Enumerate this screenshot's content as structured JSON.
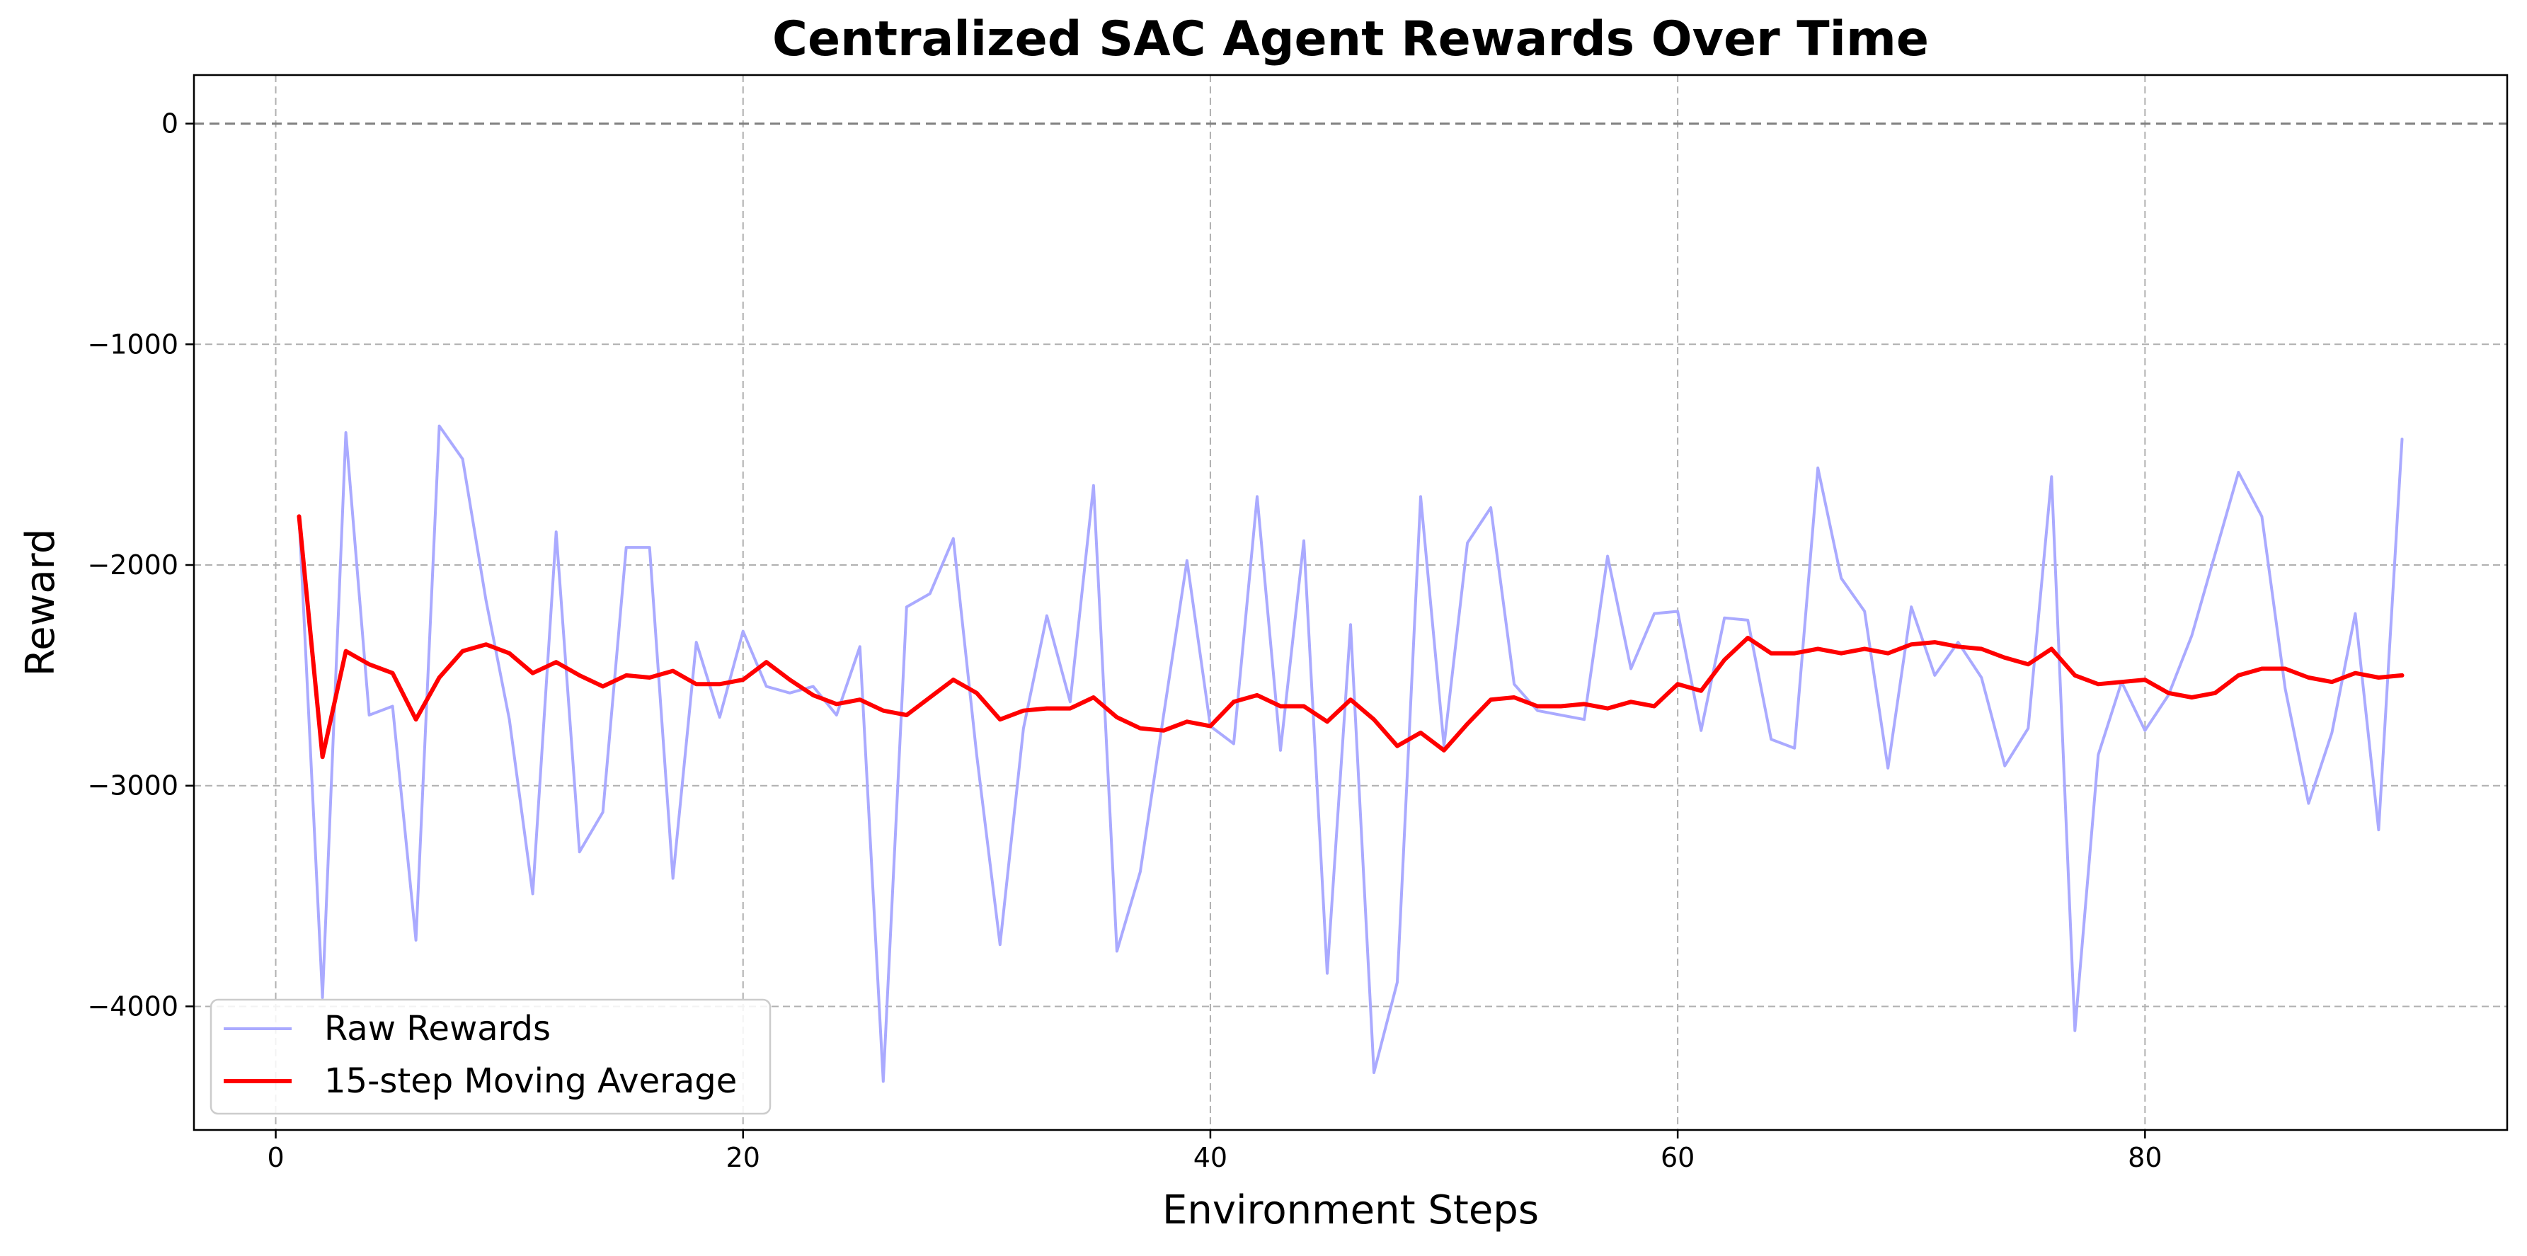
{
  "chart_data": {
    "type": "line",
    "title": "Centralized SAC Agent Rewards Over Time",
    "xlabel": "Environment Steps",
    "ylabel": "Reward",
    "xlim": [
      -3.5,
      95.5
    ],
    "ylim": [
      -4560,
      220
    ],
    "xticks": [
      0,
      20,
      40,
      60,
      80
    ],
    "yticks": [
      0,
      -1000,
      -2000,
      -3000,
      -4000
    ],
    "ytick_labels": [
      "0",
      "−1000",
      "−2000",
      "−3000",
      "−4000"
    ],
    "grid": true,
    "grid_style": "dashed",
    "reference_line": {
      "y": 0,
      "style": "dashed",
      "color": "#808080"
    },
    "legend": {
      "placement": "lower-left"
    },
    "series": [
      {
        "name": "Raw Rewards",
        "color": "#aaaaff",
        "x": [
          1,
          2,
          3,
          4,
          5,
          6,
          7,
          8,
          9,
          10,
          11,
          12,
          13,
          14,
          15,
          16,
          17,
          18,
          19,
          20,
          21,
          22,
          23,
          24,
          25,
          26,
          27,
          28,
          29,
          30,
          31,
          32,
          33,
          34,
          35,
          36,
          37,
          38,
          39,
          40,
          41,
          42,
          43,
          44,
          45,
          46,
          47,
          48,
          49,
          50,
          51,
          52,
          53,
          54,
          55,
          56,
          57,
          58,
          59,
          60,
          61,
          62,
          63,
          64,
          65,
          66,
          67,
          68,
          69,
          70,
          71,
          72,
          73,
          74,
          75,
          76,
          77,
          78,
          79,
          80,
          81,
          82,
          83,
          84,
          85,
          86,
          87,
          88,
          89,
          90,
          91
        ],
        "values": [
          -1780,
          -3960,
          -1400,
          -2680,
          -2640,
          -3700,
          -1370,
          -1520,
          -2160,
          -2700,
          -3490,
          -1850,
          -3300,
          -3120,
          -1920,
          -1920,
          -3420,
          -2350,
          -2690,
          -2300,
          -2550,
          -2580,
          -2550,
          -2680,
          -2370,
          -4340,
          -2190,
          -2130,
          -1880,
          -2860,
          -3720,
          -2740,
          -2230,
          -2620,
          -1640,
          -3750,
          -3390,
          -2680,
          -1980,
          -2730,
          -2810,
          -1690,
          -2840,
          -1890,
          -3850,
          -2270,
          -4300,
          -3890,
          -1690,
          -2820,
          -1900,
          -1740,
          -2540,
          -2660,
          -2680,
          -2700,
          -1960,
          -2470,
          -2220,
          -2210,
          -2750,
          -2240,
          -2250,
          -2790,
          -2830,
          -1560,
          -2060,
          -2210,
          -2920,
          -2190,
          -2500,
          -2350,
          -2510,
          -2910,
          -2740,
          -1600,
          -4110,
          -2860,
          -2530,
          -2750,
          -2590,
          -2320,
          -1950,
          -1580,
          -1780,
          -2560,
          -3080,
          -2760,
          -2220,
          -3200,
          -1430
        ]
      },
      {
        "name": "15-step Moving Average",
        "color": "#ff0000",
        "x": [
          1,
          2,
          3,
          4,
          5,
          6,
          7,
          8,
          9,
          10,
          11,
          12,
          13,
          14,
          15,
          16,
          17,
          18,
          19,
          20,
          21,
          22,
          23,
          24,
          25,
          26,
          27,
          28,
          29,
          30,
          31,
          32,
          33,
          34,
          35,
          36,
          37,
          38,
          39,
          40,
          41,
          42,
          43,
          44,
          45,
          46,
          47,
          48,
          49,
          50,
          51,
          52,
          53,
          54,
          55,
          56,
          57,
          58,
          59,
          60,
          61,
          62,
          63,
          64,
          65,
          66,
          67,
          68,
          69,
          70,
          71,
          72,
          73,
          74,
          75,
          76,
          77,
          78,
          79,
          80,
          81,
          82,
          83,
          84,
          85,
          86,
          87,
          88,
          89,
          90,
          91
        ],
        "values": [
          -1780,
          -2870,
          -2390,
          -2450,
          -2490,
          -2700,
          -2510,
          -2390,
          -2360,
          -2400,
          -2490,
          -2440,
          -2500,
          -2550,
          -2500,
          -2510,
          -2480,
          -2540,
          -2540,
          -2520,
          -2440,
          -2520,
          -2590,
          -2630,
          -2610,
          -2660,
          -2680,
          -2600,
          -2520,
          -2580,
          -2700,
          -2660,
          -2650,
          -2650,
          -2600,
          -2690,
          -2740,
          -2750,
          -2710,
          -2730,
          -2620,
          -2590,
          -2640,
          -2640,
          -2710,
          -2610,
          -2700,
          -2820,
          -2760,
          -2840,
          -2720,
          -2610,
          -2600,
          -2640,
          -2640,
          -2630,
          -2650,
          -2620,
          -2640,
          -2540,
          -2570,
          -2430,
          -2330,
          -2400,
          -2400,
          -2380,
          -2400,
          -2380,
          -2400,
          -2360,
          -2350,
          -2370,
          -2380,
          -2420,
          -2450,
          -2380,
          -2500,
          -2540,
          -2530,
          -2520,
          -2580,
          -2600,
          -2580,
          -2500,
          -2470,
          -2470,
          -2510,
          -2530,
          -2490,
          -2510,
          -2500
        ]
      }
    ]
  }
}
